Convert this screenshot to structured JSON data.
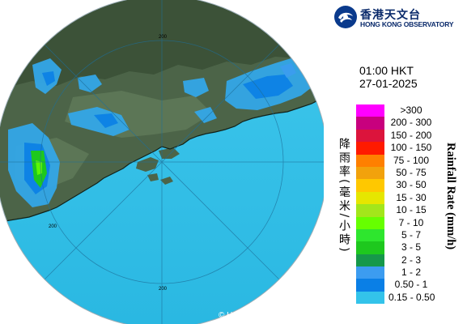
{
  "radar": {
    "range_ring_labels": [
      "200",
      "200",
      "200"
    ],
    "copyright": "© Hong Kong Observatory",
    "colors": {
      "sea": "#33c3ea",
      "land": "#4c6448",
      "outside": "#ffffff",
      "rings": "#1e6f9a"
    }
  },
  "header": {
    "logo_chinese": "香港天文台",
    "logo_english": "HONG KONG OBSERVATORY",
    "logo_icon": "hko-logo-icon"
  },
  "timestamp": {
    "time": "01:00 HKT",
    "date": "27-01-2025"
  },
  "legend": {
    "title_chinese": "降雨率(毫米/小時)",
    "title_english": "Rainfall Rate (mm/h)",
    "items": [
      {
        "label": ">300",
        "color": "#ff00ff"
      },
      {
        "label": "200 - 300",
        "color": "#c8007e"
      },
      {
        "label": "150 - 200",
        "color": "#dc143c"
      },
      {
        "label": "100 - 150",
        "color": "#ff1a00"
      },
      {
        "label": "75 - 100",
        "color": "#ff8000"
      },
      {
        "label": "50 - 75",
        "color": "#f2a20c"
      },
      {
        "label": "30 - 50",
        "color": "#ffc800"
      },
      {
        "label": "15 - 30",
        "color": "#e6e600"
      },
      {
        "label": "10 - 15",
        "color": "#a3e61b"
      },
      {
        "label": "7 - 10",
        "color": "#66ff00"
      },
      {
        "label": "5 - 7",
        "color": "#2ee62e"
      },
      {
        "label": "3 - 5",
        "color": "#1ec81e"
      },
      {
        "label": "2 - 3",
        "color": "#16984a"
      },
      {
        "label": "1 - 2",
        "color": "#3c9cf0"
      },
      {
        "label": "0.50 - 1",
        "color": "#0a7fe6"
      },
      {
        "label": "0.15 - 0.50",
        "color": "#33c3ea"
      }
    ]
  }
}
